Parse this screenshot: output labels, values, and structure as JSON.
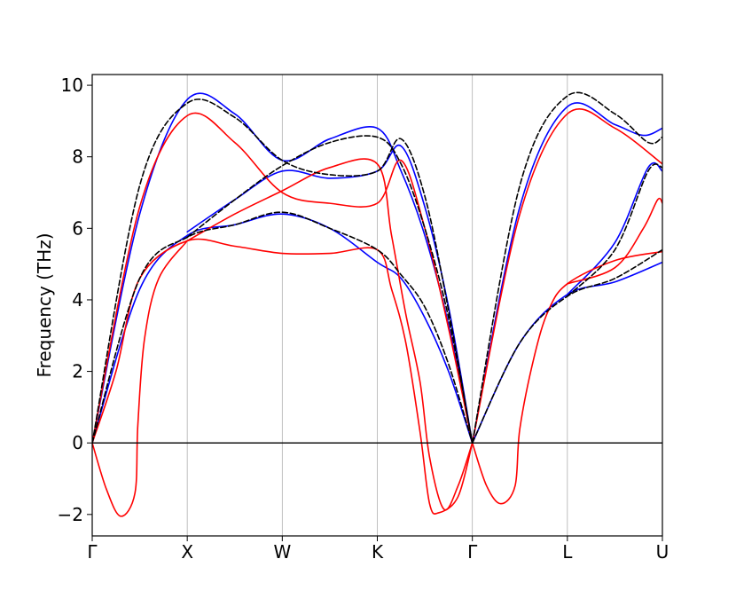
{
  "chart_data": {
    "type": "line",
    "title": "",
    "xlabel": "",
    "ylabel": "Frequency (THz)",
    "ylim": [
      -2.6,
      10.3
    ],
    "yticks": [
      "−2",
      "0",
      "2",
      "4",
      "6",
      "8",
      "10"
    ],
    "ytick_values": [
      -2,
      0,
      2,
      4,
      6,
      8,
      10
    ],
    "xticks": [
      "Γ",
      "X",
      "W",
      "K",
      "Γ",
      "L",
      "U"
    ],
    "xtick_values": [
      0,
      1,
      2,
      3,
      4,
      5,
      6
    ],
    "grid": "vertical lines at high-symmetry points",
    "reference_line": {
      "y": 0,
      "color": "#000000"
    },
    "colors": {
      "blue": "#0000ff",
      "red": "#ff0000",
      "black": "#000000"
    },
    "series": [
      {
        "color": "#0000ff",
        "dash": "solid",
        "points": [
          [
            0,
            0
          ],
          [
            0.5,
            6.4
          ],
          [
            1,
            9.6
          ],
          [
            1.5,
            9.2
          ],
          [
            2,
            7.9
          ],
          [
            2.5,
            8.5
          ],
          [
            3,
            8.8
          ],
          [
            3.25,
            7.6
          ],
          [
            3.5,
            5.8
          ],
          [
            3.75,
            3.3
          ],
          [
            4,
            0
          ]
        ]
      },
      {
        "color": "#0000ff",
        "dash": "solid",
        "points": [
          [
            0,
            0
          ],
          [
            0.5,
            4.3
          ],
          [
            1,
            5.8
          ],
          [
            1.5,
            6.1
          ],
          [
            2,
            6.4
          ],
          [
            2.5,
            6.0
          ],
          [
            3,
            5.05
          ],
          [
            3.25,
            4.6
          ],
          [
            3.5,
            3.5
          ],
          [
            3.75,
            2.0
          ],
          [
            4,
            0
          ]
        ]
      },
      {
        "color": "#0000ff",
        "dash": "solid",
        "points": [
          [
            1,
            5.9
          ],
          [
            1.5,
            6.8
          ],
          [
            2,
            7.6
          ],
          [
            2.5,
            7.4
          ],
          [
            3,
            7.6
          ],
          [
            3.25,
            8.3
          ],
          [
            3.5,
            6.6
          ],
          [
            3.75,
            3.8
          ],
          [
            4,
            0
          ]
        ]
      },
      {
        "color": "#0000ff",
        "dash": "solid",
        "points": [
          [
            4,
            0
          ],
          [
            4.5,
            6.6
          ],
          [
            5,
            9.4
          ],
          [
            5.5,
            8.9
          ],
          [
            5.8,
            8.6
          ],
          [
            6,
            8.8
          ]
        ]
      },
      {
        "color": "#0000ff",
        "dash": "solid",
        "points": [
          [
            4,
            0
          ],
          [
            4.5,
            2.8
          ],
          [
            5,
            4.15
          ],
          [
            5.5,
            4.5
          ],
          [
            6,
            5.05
          ]
        ]
      },
      {
        "color": "#0000ff",
        "dash": "solid",
        "points": [
          [
            5,
            4.15
          ],
          [
            5.5,
            5.6
          ],
          [
            5.85,
            7.7
          ],
          [
            6,
            7.6
          ]
        ]
      },
      {
        "color": "#ff0000",
        "dash": "solid",
        "points": [
          [
            0,
            0
          ],
          [
            0.5,
            6.6
          ],
          [
            1,
            9.15
          ],
          [
            1.5,
            8.4
          ],
          [
            2,
            7.0
          ],
          [
            2.5,
            6.7
          ],
          [
            3,
            6.7
          ],
          [
            3.25,
            7.9
          ],
          [
            3.5,
            6.0
          ],
          [
            3.75,
            3.2
          ],
          [
            4,
            0
          ]
        ]
      },
      {
        "color": "#ff0000",
        "dash": "solid",
        "points": [
          [
            1,
            5.65
          ],
          [
            1.5,
            6.4
          ],
          [
            2,
            7.05
          ],
          [
            2.5,
            7.7
          ],
          [
            3,
            7.8
          ],
          [
            3.15,
            5.8
          ],
          [
            3.3,
            3.6
          ],
          [
            3.45,
            1.7
          ],
          [
            3.55,
            -0.4
          ],
          [
            3.7,
            -1.85
          ],
          [
            3.85,
            -1.2
          ],
          [
            4,
            0
          ]
        ]
      },
      {
        "color": "#ff0000",
        "dash": "solid",
        "points": [
          [
            0,
            0
          ],
          [
            0.25,
            2.0
          ],
          [
            0.5,
            4.6
          ],
          [
            1,
            5.65
          ],
          [
            1.5,
            5.5
          ],
          [
            2,
            5.3
          ],
          [
            2.5,
            5.3
          ],
          [
            3,
            5.4
          ],
          [
            3.15,
            4.3
          ],
          [
            3.3,
            2.8
          ],
          [
            3.45,
            0.3
          ],
          [
            3.55,
            -1.7
          ],
          [
            3.65,
            -1.95
          ],
          [
            3.85,
            -1.5
          ],
          [
            4,
            0
          ]
        ]
      },
      {
        "color": "#ff0000",
        "dash": "solid",
        "points": [
          [
            0,
            0
          ],
          [
            0.15,
            -1.3
          ],
          [
            0.3,
            -2.05
          ],
          [
            0.45,
            -1.4
          ],
          [
            0.48,
            0.5
          ],
          [
            0.55,
            2.9
          ],
          [
            0.7,
            4.6
          ],
          [
            1,
            5.65
          ]
        ]
      },
      {
        "color": "#ff0000",
        "dash": "solid",
        "points": [
          [
            4,
            0
          ],
          [
            4.5,
            6.4
          ],
          [
            5,
            9.2
          ],
          [
            5.5,
            8.8
          ],
          [
            6,
            7.8
          ]
        ]
      },
      {
        "color": "#ff0000",
        "dash": "solid",
        "points": [
          [
            4,
            0
          ],
          [
            4.15,
            -1.2
          ],
          [
            4.3,
            -1.7
          ],
          [
            4.45,
            -1.2
          ],
          [
            4.5,
            0.4
          ],
          [
            4.65,
            2.4
          ],
          [
            4.8,
            3.7
          ],
          [
            5,
            4.45
          ],
          [
            5.5,
            5.1
          ],
          [
            6,
            5.35
          ]
        ]
      },
      {
        "color": "#ff0000",
        "dash": "solid",
        "points": [
          [
            5,
            4.45
          ],
          [
            5.5,
            4.9
          ],
          [
            5.8,
            6.0
          ],
          [
            5.95,
            6.8
          ],
          [
            6,
            6.7
          ]
        ]
      },
      {
        "color": "#000000",
        "dash": "dashed",
        "points": [
          [
            0,
            0
          ],
          [
            0.5,
            7.2
          ],
          [
            1,
            9.5
          ],
          [
            1.5,
            9.1
          ],
          [
            2,
            7.9
          ],
          [
            2.5,
            7.5
          ],
          [
            3,
            7.6
          ],
          [
            3.25,
            8.5
          ],
          [
            3.5,
            6.9
          ],
          [
            3.75,
            3.7
          ],
          [
            4,
            0
          ]
        ]
      },
      {
        "color": "#000000",
        "dash": "dashed",
        "points": [
          [
            0,
            0
          ],
          [
            0.5,
            4.6
          ],
          [
            1,
            5.75
          ],
          [
            1.5,
            6.1
          ],
          [
            2,
            6.45
          ],
          [
            2.5,
            6.0
          ],
          [
            3,
            5.4
          ],
          [
            3.25,
            4.7
          ],
          [
            3.5,
            3.8
          ],
          [
            3.75,
            2.2
          ],
          [
            4,
            0
          ]
        ]
      },
      {
        "color": "#000000",
        "dash": "dashed",
        "points": [
          [
            1,
            5.75
          ],
          [
            1.5,
            6.8
          ],
          [
            2,
            7.75
          ],
          [
            2.5,
            8.4
          ],
          [
            3,
            8.55
          ],
          [
            3.25,
            7.8
          ],
          [
            3.5,
            6.0
          ],
          [
            3.75,
            3.5
          ],
          [
            4,
            0
          ]
        ]
      },
      {
        "color": "#000000",
        "dash": "dashed",
        "points": [
          [
            4,
            0
          ],
          [
            4.5,
            7.2
          ],
          [
            5,
            9.7
          ],
          [
            5.5,
            9.2
          ],
          [
            5.85,
            8.4
          ],
          [
            6,
            8.55
          ]
        ]
      },
      {
        "color": "#000000",
        "dash": "dashed",
        "points": [
          [
            4,
            0
          ],
          [
            4.5,
            2.8
          ],
          [
            5,
            4.1
          ],
          [
            5.5,
            4.6
          ],
          [
            6,
            5.4
          ]
        ]
      },
      {
        "color": "#000000",
        "dash": "dashed",
        "points": [
          [
            5,
            4.1
          ],
          [
            5.5,
            5.4
          ],
          [
            5.85,
            7.6
          ],
          [
            6,
            7.7
          ]
        ]
      }
    ]
  }
}
